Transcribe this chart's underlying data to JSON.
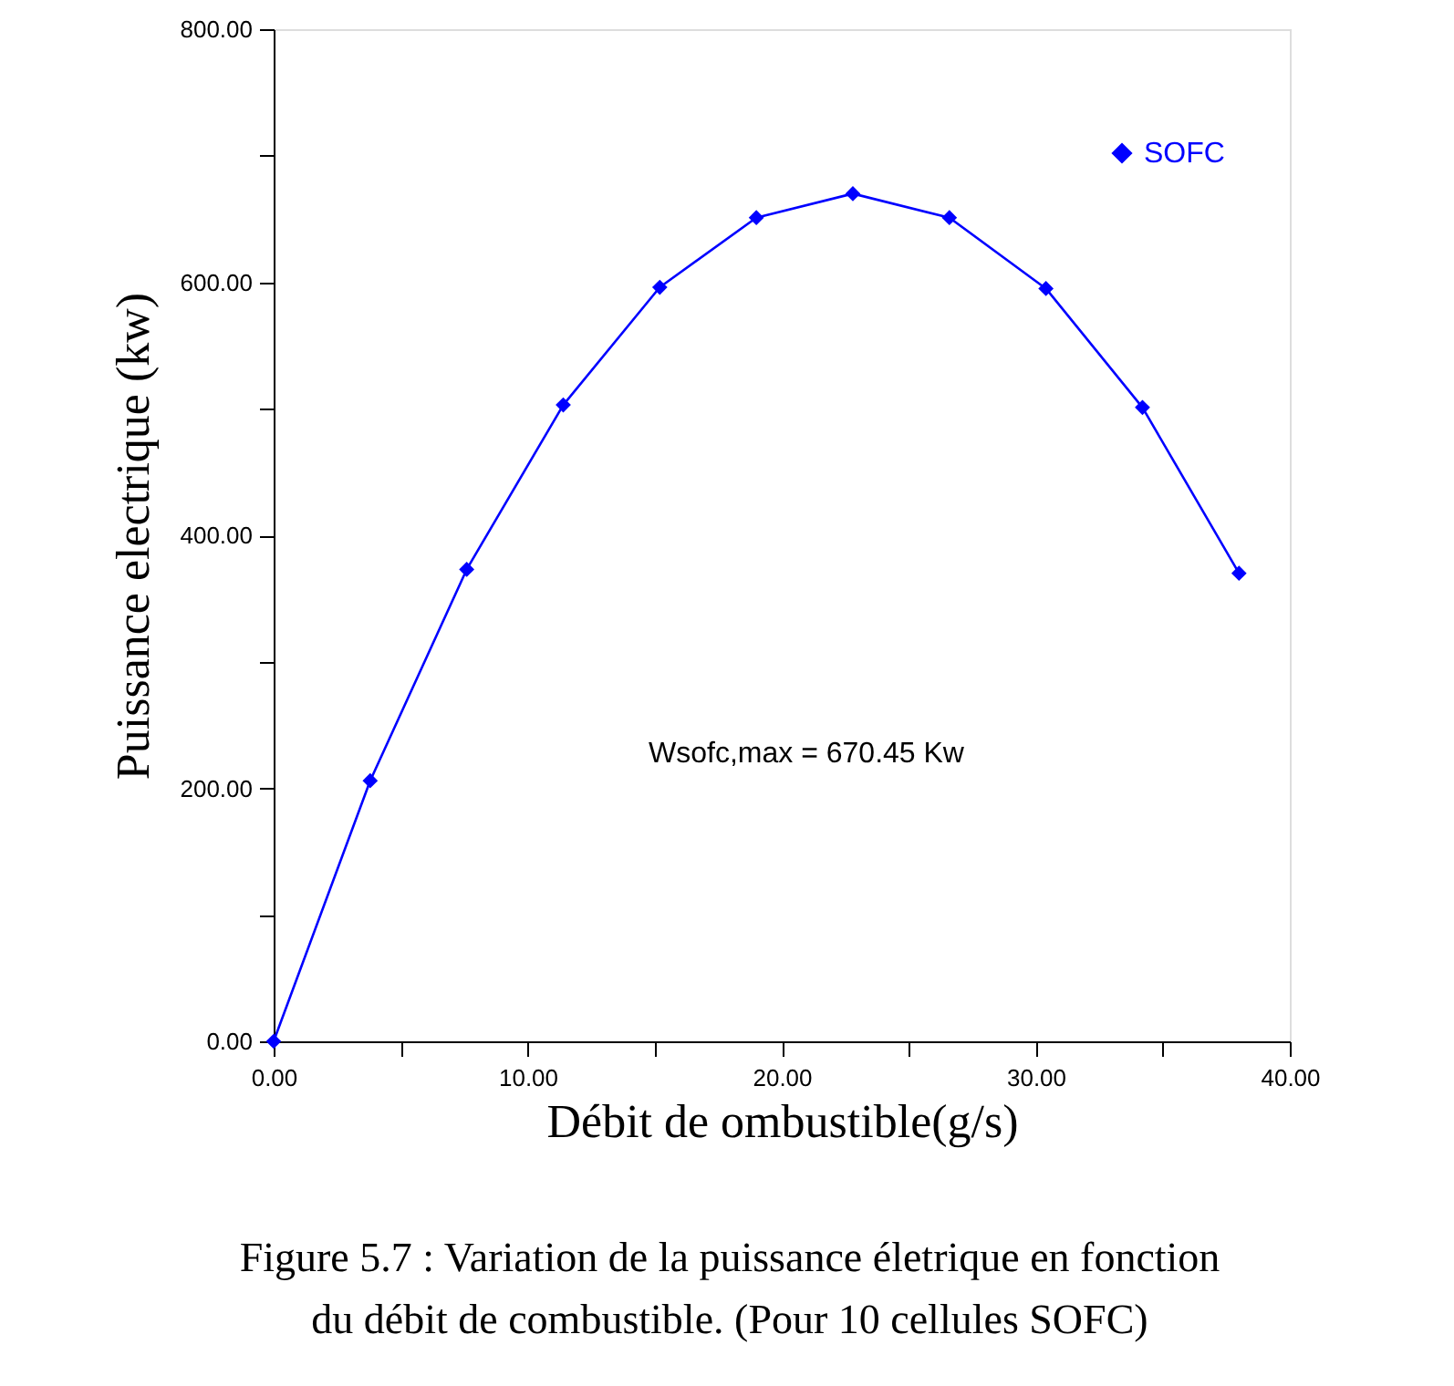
{
  "chart_data": {
    "type": "line",
    "xlabel": "Débit de ombustible(g/s)",
    "ylabel": "Puissance electrique (kw)",
    "x": [
      0,
      3.8,
      7.6,
      11.4,
      15.2,
      19.0,
      22.8,
      26.6,
      30.4,
      34.2,
      38.0
    ],
    "series": [
      {
        "name": "SOFC",
        "color": "#0000ff",
        "values": [
          0,
          206,
          373,
          503,
          596,
          651,
          670,
          651,
          595,
          501,
          370
        ]
      }
    ],
    "xlim": [
      0,
      40
    ],
    "ylim": [
      0,
      800
    ],
    "xticks": [
      {
        "value": 0,
        "label": "0.00"
      },
      {
        "value": 5,
        "label": null
      },
      {
        "value": 10,
        "label": "10.00"
      },
      {
        "value": 15,
        "label": null
      },
      {
        "value": 20,
        "label": "20.00"
      },
      {
        "value": 25,
        "label": null
      },
      {
        "value": 30,
        "label": "30.00"
      },
      {
        "value": 35,
        "label": null
      },
      {
        "value": 40,
        "label": "40.00"
      }
    ],
    "yticks": [
      {
        "value": 0,
        "label": "0.00"
      },
      {
        "value": 100,
        "label": null
      },
      {
        "value": 200,
        "label": "200.00"
      },
      {
        "value": 300,
        "label": null
      },
      {
        "value": 400,
        "label": "400.00"
      },
      {
        "value": 500,
        "label": null
      },
      {
        "value": 600,
        "label": "600.00"
      },
      {
        "value": 700,
        "label": null
      },
      {
        "value": 800,
        "label": "800.00"
      }
    ],
    "annotations": [
      "Wsofc,max = 670.45 Kw",
      "Figure 5.7 : Variation de la puissance életrique en fonction du débit de combustible. (Pour 10 cellules SOFC)"
    ],
    "grid": false,
    "legend": "top right",
    "marker": "diamond",
    "line_style": "solid"
  }
}
